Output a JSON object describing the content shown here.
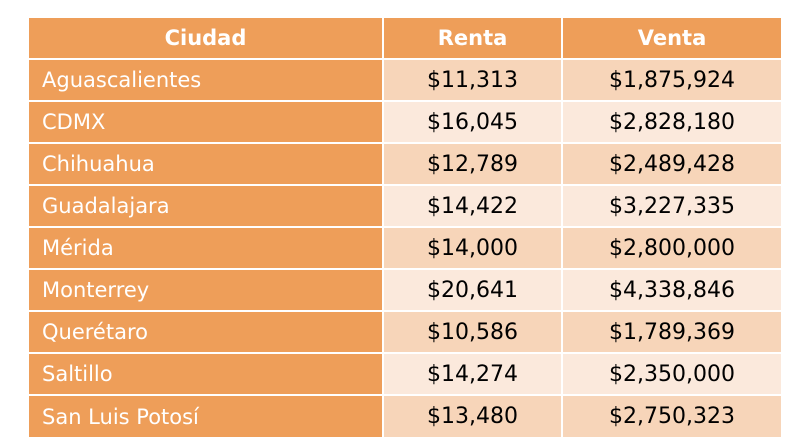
{
  "table": {
    "headers": [
      "Ciudad",
      "Renta",
      "Venta"
    ],
    "rows": [
      {
        "ciudad": "Aguascalientes",
        "renta": "$11,313",
        "venta": "$1,875,924"
      },
      {
        "ciudad": "CDMX",
        "renta": "$16,045",
        "venta": "$2,828,180"
      },
      {
        "ciudad": "Chihuahua",
        "renta": "$12,789",
        "venta": "$2,489,428"
      },
      {
        "ciudad": "Guadalajara",
        "renta": "$14,422",
        "venta": "$3,227,335"
      },
      {
        "ciudad": "Mérida",
        "renta": "$14,000",
        "venta": "$2,800,000"
      },
      {
        "ciudad": "Monterrey",
        "renta": "$20,641",
        "venta": "$4,338,846"
      },
      {
        "ciudad": "Querétaro",
        "renta": "$10,586",
        "venta": "$1,789,369"
      },
      {
        "ciudad": "Saltillo",
        "renta": "$14,274",
        "venta": "$2,350,000"
      },
      {
        "ciudad": "San Luis Potosí",
        "renta": "$13,480",
        "venta": "$2,750,323"
      }
    ]
  },
  "colors": {
    "header_bg": "#ee9e59",
    "row_dark": "#f7d5b9",
    "row_light": "#fbe9dc"
  }
}
